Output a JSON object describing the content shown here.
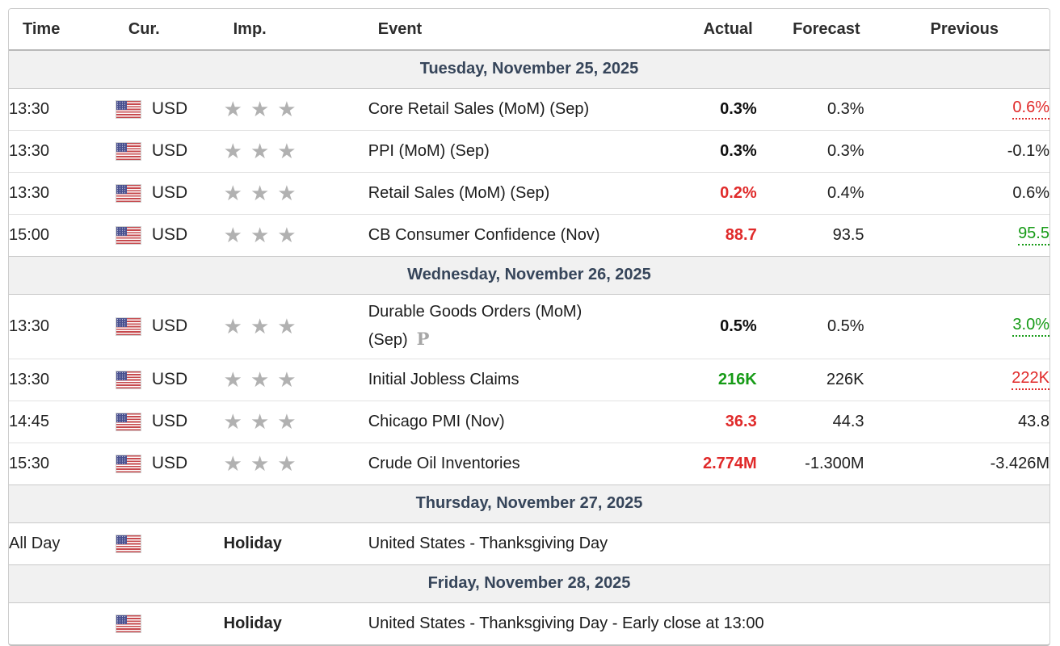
{
  "header": {
    "columns": [
      "Time",
      "Cur.",
      "Imp.",
      "Event",
      "Actual",
      "Forecast",
      "Previous"
    ]
  },
  "icons": {
    "star": "★",
    "preliminary_marker": "P",
    "flag": "us-flag"
  },
  "colors": {
    "red": "#e02a2a",
    "green": "#169b16",
    "date_text": "#36455a",
    "date_bg": "#f1f1f1"
  },
  "sections": [
    {
      "date": "Tuesday, November 25, 2025",
      "rows": [
        {
          "time": "13:30",
          "currency": "USD",
          "importance": 3,
          "event": "Core Retail Sales (MoM) (Sep)",
          "actual": {
            "text": "0.3%",
            "style": "bold"
          },
          "forecast": "0.3%",
          "previous": {
            "text": "0.6%",
            "style": "red-dotted"
          }
        },
        {
          "time": "13:30",
          "currency": "USD",
          "importance": 3,
          "event": "PPI (MoM) (Sep)",
          "actual": {
            "text": "0.3%",
            "style": "bold"
          },
          "forecast": "0.3%",
          "previous": {
            "text": "-0.1%",
            "style": "plain"
          }
        },
        {
          "time": "13:30",
          "currency": "USD",
          "importance": 3,
          "event": "Retail Sales (MoM) (Sep)",
          "actual": {
            "text": "0.2%",
            "style": "red"
          },
          "forecast": "0.4%",
          "previous": {
            "text": "0.6%",
            "style": "plain"
          }
        },
        {
          "time": "15:00",
          "currency": "USD",
          "importance": 3,
          "event": "CB Consumer Confidence (Nov)",
          "actual": {
            "text": "88.7",
            "style": "red"
          },
          "forecast": "93.5",
          "previous": {
            "text": "95.5",
            "style": "green-dotted"
          }
        }
      ]
    },
    {
      "date": "Wednesday, November 26, 2025",
      "rows": [
        {
          "time": "13:30",
          "currency": "USD",
          "importance": 3,
          "event": "Durable Goods Orders (MoM)",
          "event_line2": "(Sep)",
          "preliminary": true,
          "actual": {
            "text": "0.5%",
            "style": "bold"
          },
          "forecast": "0.5%",
          "previous": {
            "text": "3.0%",
            "style": "green-dotted"
          }
        },
        {
          "time": "13:30",
          "currency": "USD",
          "importance": 3,
          "event": "Initial Jobless Claims",
          "actual": {
            "text": "216K",
            "style": "green"
          },
          "forecast": "226K",
          "previous": {
            "text": "222K",
            "style": "red-dotted"
          }
        },
        {
          "time": "14:45",
          "currency": "USD",
          "importance": 3,
          "event": "Chicago PMI (Nov)",
          "actual": {
            "text": "36.3",
            "style": "red"
          },
          "forecast": "44.3",
          "previous": {
            "text": "43.8",
            "style": "plain"
          }
        },
        {
          "time": "15:30",
          "currency": "USD",
          "importance": 3,
          "event": "Crude Oil Inventories",
          "actual": {
            "text": "2.774M",
            "style": "red"
          },
          "forecast": "-1.300M",
          "previous": {
            "text": "-3.426M",
            "style": "plain"
          }
        }
      ]
    },
    {
      "date": "Thursday, November 27, 2025",
      "rows": [
        {
          "time": "All Day",
          "holiday": true,
          "label": "Holiday",
          "event": "United States - Thanksgiving Day"
        }
      ]
    },
    {
      "date": "Friday, November 28, 2025",
      "rows": [
        {
          "time": "",
          "holiday": true,
          "label": "Holiday",
          "event": "United States - Thanksgiving Day - Early close at 13:00"
        }
      ]
    }
  ]
}
